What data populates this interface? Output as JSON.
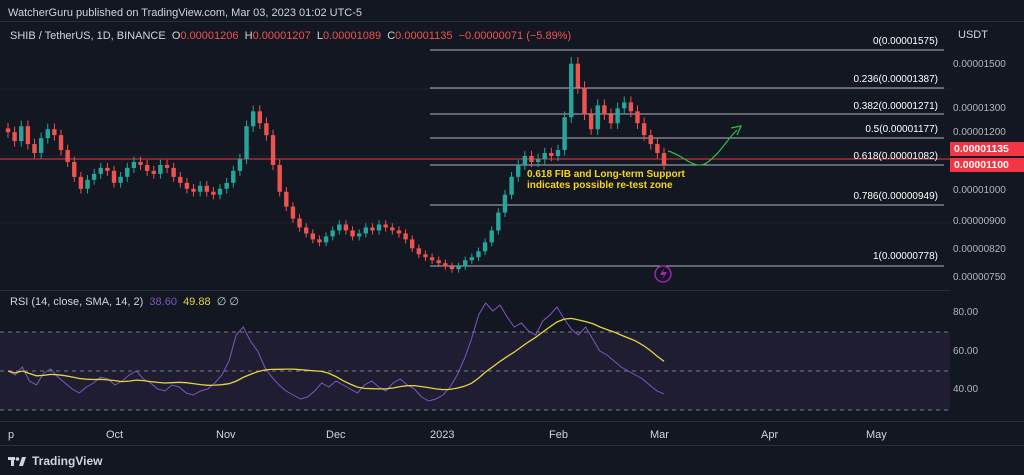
{
  "header": {
    "publisher": "WatcherGuru published on TradingView.com, Mar 03, 2023 01:02 UTC-5"
  },
  "legend": {
    "symbol": "SHIB / TetherUS, 1D, BINANCE",
    "open_label": "O",
    "open": "0.00001206",
    "high_label": "H",
    "high": "0.00001207",
    "low_label": "L",
    "low": "0.00001089",
    "close_label": "C",
    "close": "0.00001135",
    "change": "−0.00000071 (−5.89%)"
  },
  "rsi_legend": {
    "name": "RSI (14, close, SMA, 14, 2)",
    "rsi": "38.60",
    "sma": "49.88",
    "extra1": "∅",
    "extra2": "∅"
  },
  "axis": {
    "currency": "USDT",
    "price_ticks": [
      "0.00001500",
      "0.00001300",
      "0.00001200",
      "0.00001000",
      "0.00000900",
      "0.00000820",
      "0.00000750"
    ],
    "last_price": "0.00001135",
    "support_price": "0.00001100",
    "rsi_ticks": [
      "80.00",
      "60.00",
      "40.00"
    ]
  },
  "fib_levels": [
    {
      "label": "0(0.00001575)"
    },
    {
      "label": "0.236(0.00001387)"
    },
    {
      "label": "0.382(0.00001271)"
    },
    {
      "label": "0.5(0.00001177)"
    },
    {
      "label": "0.618(0.00001082)"
    },
    {
      "label": "0.786(0.00000949)"
    },
    {
      "label": "1(0.00000778)"
    }
  ],
  "annotation": {
    "line1": "0.618 FIB and Long-term Support",
    "line2": "indicates possible re-test zone"
  },
  "time_axis": [
    "p",
    "Oct",
    "Nov",
    "Dec",
    "2023",
    "Feb",
    "Mar",
    "Apr",
    "May"
  ],
  "footer": {
    "brand": "TradingView"
  },
  "chart_data": {
    "type": "candlestick",
    "symbol": "SHIB / TetherUS",
    "interval": "1D",
    "y_range": [
      7.2e-06,
      1.62e-05
    ],
    "close_series_approx": [
      1.25e-05,
      1.22e-05,
      1.27e-05,
      1.21e-05,
      1.18e-05,
      1.23e-05,
      1.26e-05,
      1.24e-05,
      1.19e-05,
      1.15e-05,
      1.1e-05,
      1.06e-05,
      1.09e-05,
      1.11e-05,
      1.13e-05,
      1.12e-05,
      1.08e-05,
      1.1e-05,
      1.13e-05,
      1.15e-05,
      1.14e-05,
      1.12e-05,
      1.11e-05,
      1.14e-05,
      1.13e-05,
      1.1e-05,
      1.08e-05,
      1.06e-05,
      1.05e-05,
      1.07e-05,
      1.05e-05,
      1.04e-05,
      1.06e-05,
      1.08e-05,
      1.12e-05,
      1.16e-05,
      1.27e-05,
      1.32e-05,
      1.28e-05,
      1.24e-05,
      1.14e-05,
      1.05e-05,
      1e-05,
      9.6e-06,
      9.3e-06,
      9.1e-06,
      8.9e-06,
      8.8e-06,
      9e-06,
      9.2e-06,
      9.4e-06,
      9.2e-06,
      9e-06,
      9.1e-06,
      9.3e-06,
      9.2e-06,
      9.4e-06,
      9.3e-06,
      9.2e-06,
      9.1e-06,
      8.9e-06,
      8.6e-06,
      8.4e-06,
      8.3e-06,
      8.2e-06,
      8.1e-06,
      8e-06,
      7.9e-06,
      8e-06,
      8.2e-06,
      8.3e-06,
      8.5e-06,
      8.8e-06,
      9.2e-06,
      9.8e-06,
      1.04e-05,
      1.1e-05,
      1.14e-05,
      1.17e-05,
      1.15e-05,
      1.16e-05,
      1.18e-05,
      1.17e-05,
      1.19e-05,
      1.3e-05,
      1.48e-05,
      1.4e-05,
      1.31e-05,
      1.26e-05,
      1.34e-05,
      1.31e-05,
      1.28e-05,
      1.33e-05,
      1.35e-05,
      1.32e-05,
      1.28e-05,
      1.24e-05,
      1.21e-05,
      1.18e-05,
      1.14e-05
    ],
    "rsi_series_approx": [
      50,
      48,
      52,
      45,
      43,
      49,
      51,
      47,
      44,
      41,
      39,
      42,
      44,
      47,
      46,
      43,
      45,
      48,
      50,
      46,
      44,
      41,
      40,
      43,
      42,
      39,
      38,
      40,
      41,
      44,
      48,
      55,
      68,
      72,
      65,
      60,
      52,
      47,
      43,
      40,
      38,
      36,
      37,
      40,
      44,
      42,
      45,
      43,
      41,
      39,
      43,
      45,
      42,
      40,
      44,
      46,
      43,
      41,
      37,
      35,
      36,
      38,
      42,
      48,
      56,
      66,
      78,
      84,
      80,
      83,
      77,
      72,
      74,
      70,
      68,
      75,
      78,
      82,
      76,
      71,
      68,
      72,
      66,
      60,
      58,
      55,
      52,
      50,
      48,
      46,
      43,
      40,
      38.6
    ],
    "rsi_range": [
      25,
      90
    ]
  }
}
